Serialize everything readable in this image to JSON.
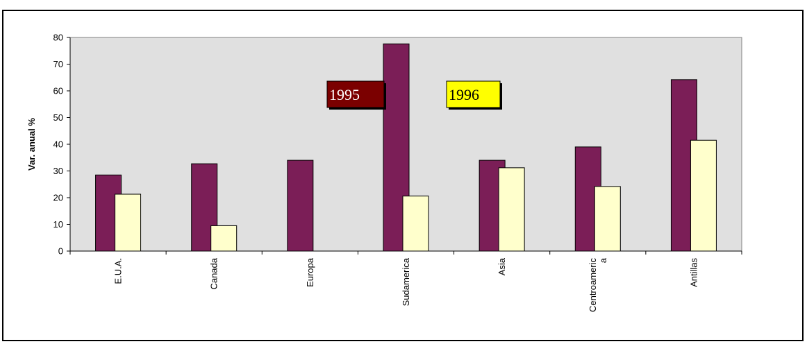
{
  "chart_data": {
    "type": "bar",
    "title": "",
    "xlabel": "",
    "ylabel": "Var. anual %",
    "ylim": [
      0,
      80
    ],
    "yticks": [
      0,
      10,
      20,
      30,
      40,
      50,
      60,
      70,
      80
    ],
    "grid": false,
    "plot_background": "#e0e0e0",
    "legend_placement": "inside-top-center",
    "categories": [
      {
        "lines": [
          "E.U.A."
        ]
      },
      {
        "lines": [
          "Canada"
        ]
      },
      {
        "lines": [
          "Europa"
        ]
      },
      {
        "lines": [
          "Sudamerica"
        ]
      },
      {
        "lines": [
          "Asia"
        ]
      },
      {
        "lines": [
          "Centroameric",
          "a"
        ]
      },
      {
        "lines": [
          "Antillas"
        ]
      }
    ],
    "series": [
      {
        "name": "1995",
        "color": "#7b1e57",
        "legend_bg": "#7b0000",
        "legend_text_color": "#ffffff",
        "values": [
          28.5,
          32.7,
          34.0,
          77.6,
          34.0,
          39.0,
          64.2
        ]
      },
      {
        "name": "1996",
        "color": "#ffffcc",
        "legend_bg": "#ffff00",
        "legend_text_color": "#000000",
        "values": [
          21.3,
          9.5,
          null,
          20.6,
          31.2,
          24.2,
          41.5
        ]
      }
    ]
  }
}
